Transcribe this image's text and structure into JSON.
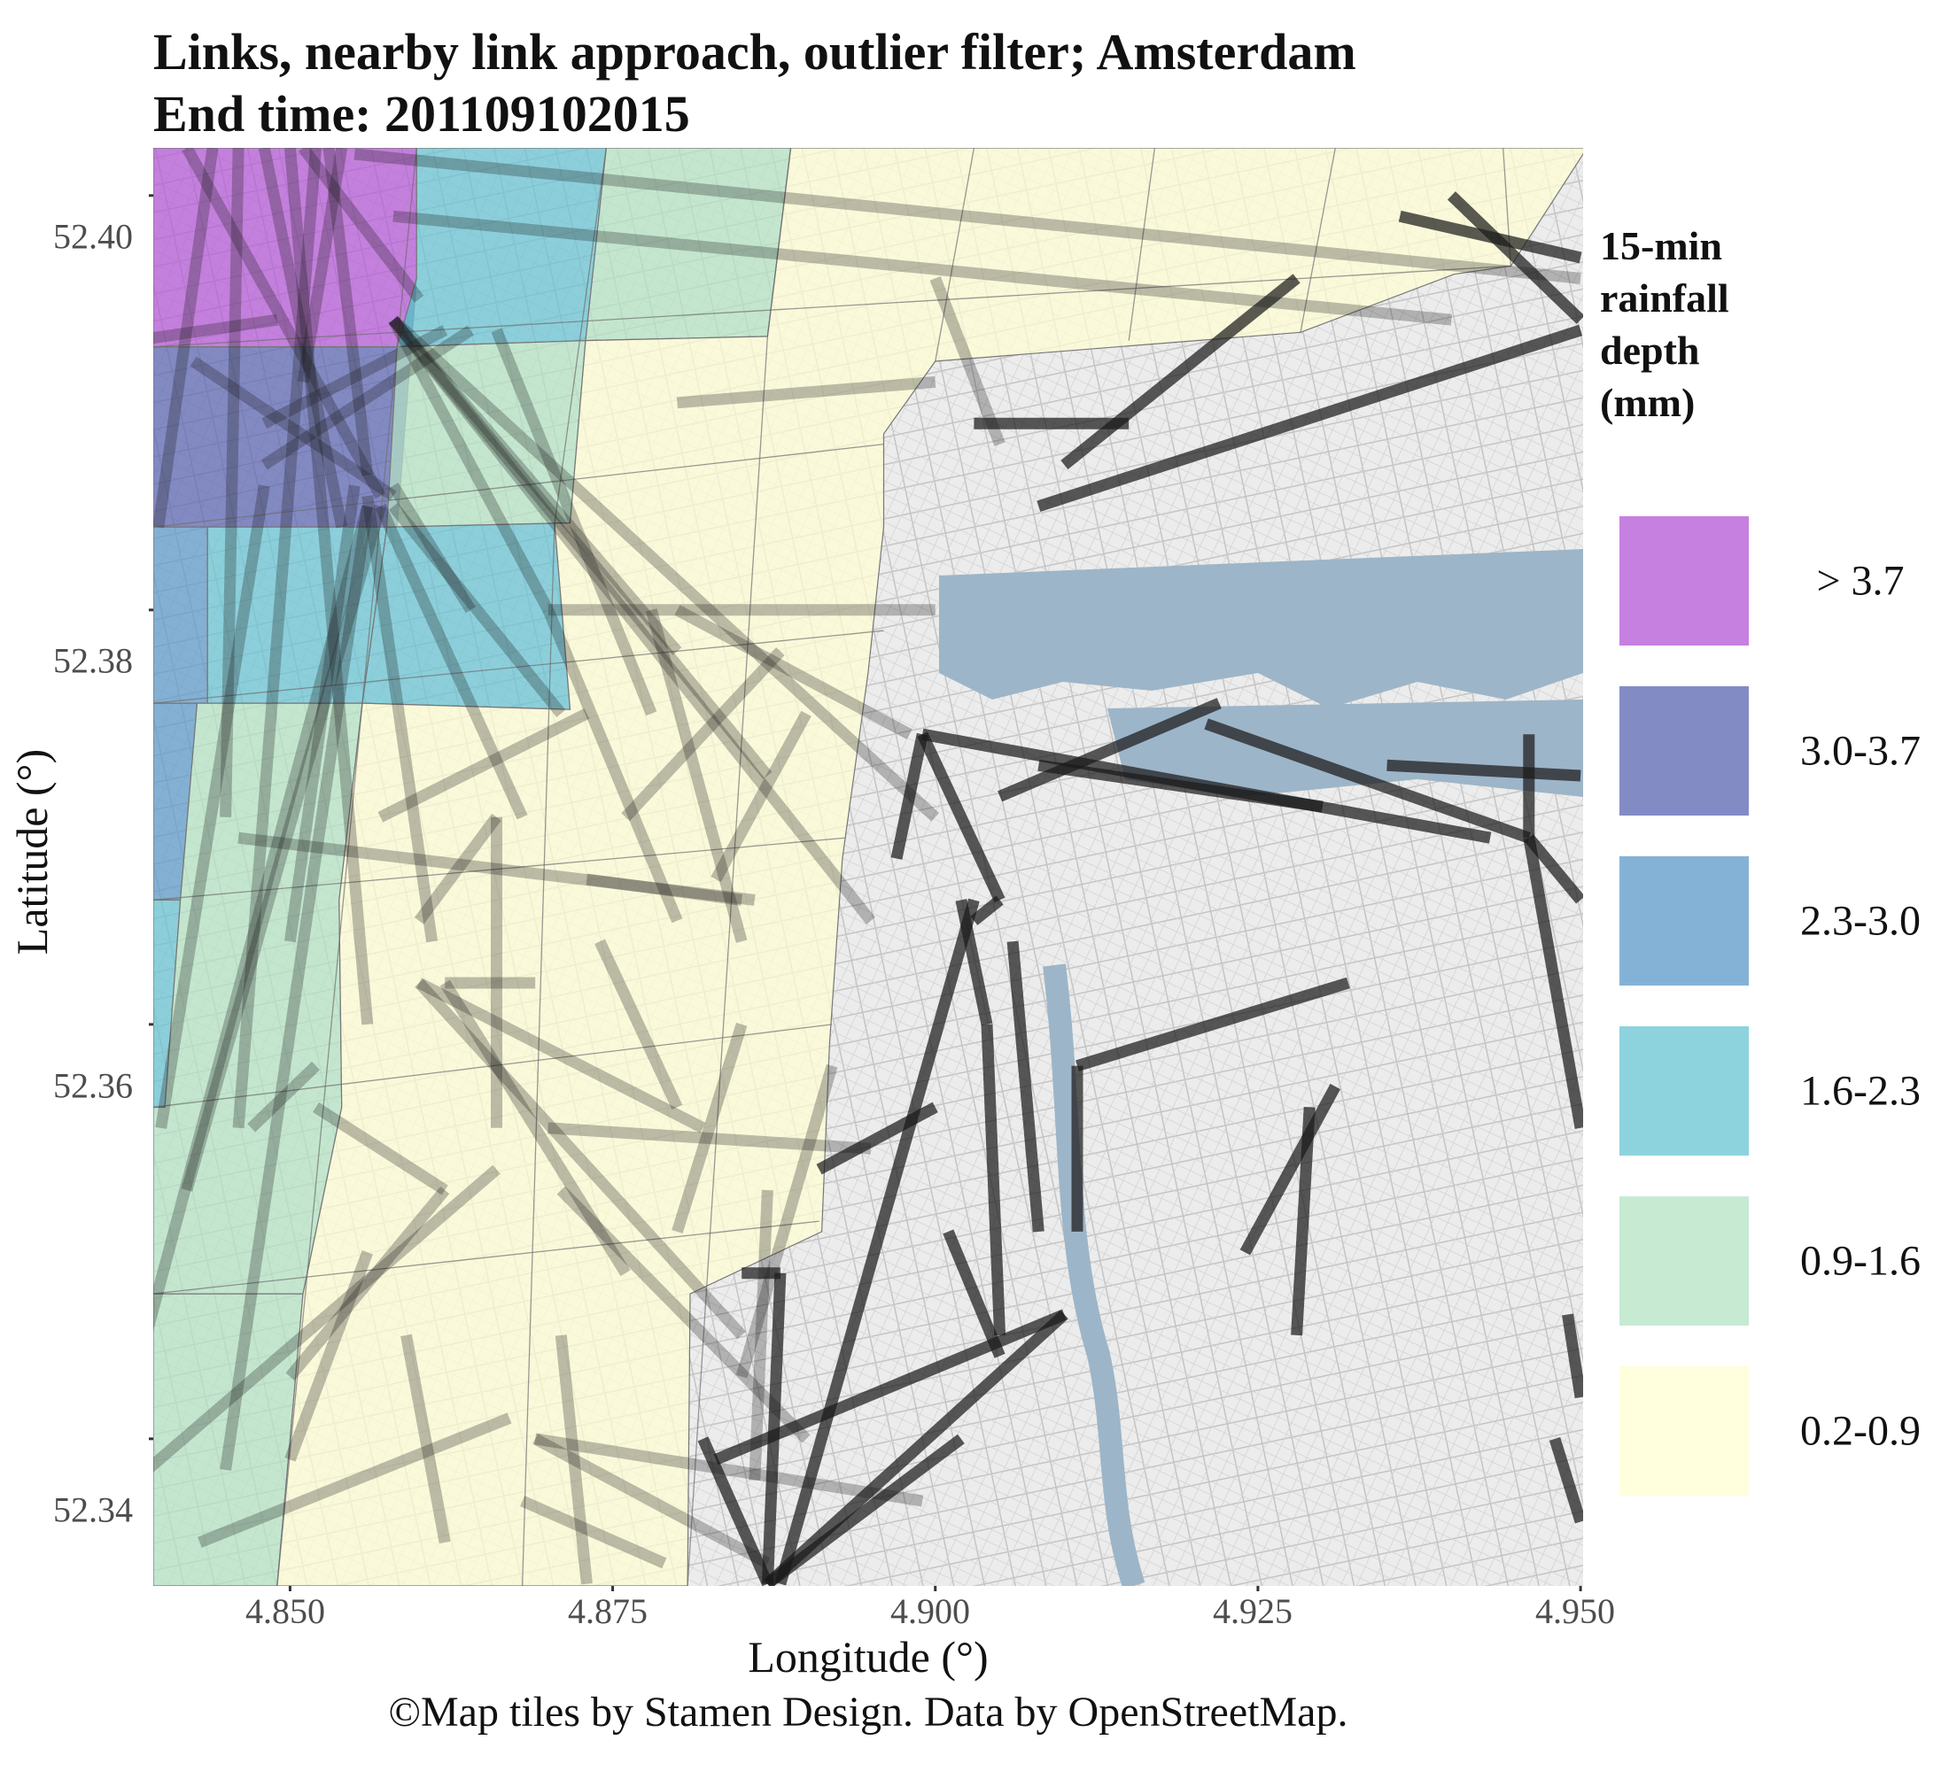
{
  "title": {
    "line1": "Links, nearby link approach, outlier filter; Amsterdam",
    "line2": "End time:  201109102015"
  },
  "axes": {
    "xlabel": "Longitude (°)",
    "ylabel": "Latitude (°)",
    "xticks": [
      "4.850",
      "4.875",
      "4.900",
      "4.925",
      "4.950"
    ],
    "yticks": [
      "52.40",
      "52.38",
      "52.36",
      "52.34"
    ],
    "xlim": [
      4.8394,
      4.9502
    ],
    "ylim": [
      52.3329,
      52.4023
    ]
  },
  "caption": "©Map tiles by Stamen Design. Data by OpenStreetMap.",
  "legend": {
    "title_lines": [
      "15-min",
      "rainfall",
      "depth",
      "(mm)"
    ],
    "items": [
      {
        "label": "> 3.7",
        "color": "#b356d6"
      },
      {
        "label": "3.0-3.7",
        "color": "#5a64b2"
      },
      {
        "label": "2.3-3.0",
        "color": "#5b98c9"
      },
      {
        "label": "1.6-2.3",
        "color": "#67c4d2"
      },
      {
        "label": "0.9-1.6",
        "color": "#b4e3c4"
      },
      {
        "label": "0.2-0.9",
        "color": "#fffdd2"
      }
    ]
  },
  "map": {
    "water_color": "#9db5c8",
    "land_color": "#ececec",
    "street_color": "#bcbcbc",
    "link_color": "#1a1a1a"
  },
  "rainfall_cells": [
    {
      "cls": 0,
      "corners": [
        [
          4.8394,
          52.4023
        ],
        [
          4.8598,
          52.4023
        ],
        [
          4.8598,
          52.396
        ],
        [
          4.8583,
          52.3927
        ],
        [
          4.8394,
          52.3927
        ]
      ]
    },
    {
      "cls": 1,
      "corners": [
        [
          4.8394,
          52.3927
        ],
        [
          4.8583,
          52.3927
        ],
        [
          4.8598,
          52.396
        ],
        [
          4.8583,
          52.384
        ],
        [
          4.8575,
          52.384
        ],
        [
          4.8394,
          52.384
        ]
      ]
    },
    {
      "cls": 2,
      "corners": [
        [
          4.8394,
          52.384
        ],
        [
          4.8436,
          52.384
        ],
        [
          4.8436,
          52.3755
        ],
        [
          4.8394,
          52.3755
        ]
      ]
    },
    {
      "cls": 2,
      "corners": [
        [
          4.8394,
          52.3755
        ],
        [
          4.8428,
          52.3755
        ],
        [
          4.8415,
          52.366
        ],
        [
          4.8394,
          52.366
        ]
      ]
    },
    {
      "cls": 3,
      "corners": [
        [
          4.8436,
          52.384
        ],
        [
          4.8575,
          52.384
        ],
        [
          4.8556,
          52.3755
        ],
        [
          4.8436,
          52.3755
        ]
      ]
    },
    {
      "cls": 3,
      "corners": [
        [
          4.8598,
          52.4023
        ],
        [
          4.8745,
          52.4023
        ],
        [
          4.8729,
          52.393
        ],
        [
          4.8583,
          52.3927
        ],
        [
          4.8598,
          52.396
        ]
      ]
    },
    {
      "cls": 3,
      "corners": [
        [
          4.8394,
          52.366
        ],
        [
          4.8415,
          52.366
        ],
        [
          4.8403,
          52.356
        ],
        [
          4.8394,
          52.356
        ]
      ]
    },
    {
      "cls": 3,
      "corners": [
        [
          4.8575,
          52.384
        ],
        [
          4.8705,
          52.3842
        ],
        [
          4.8717,
          52.3752
        ],
        [
          4.8556,
          52.3755
        ]
      ]
    },
    {
      "cls": 4,
      "corners": [
        [
          4.8745,
          52.4023
        ],
        [
          4.8888,
          52.4023
        ],
        [
          4.887,
          52.3932
        ],
        [
          4.8729,
          52.393
        ]
      ]
    },
    {
      "cls": 4,
      "corners": [
        [
          4.8583,
          52.3927
        ],
        [
          4.8729,
          52.393
        ],
        [
          4.8717,
          52.3842
        ],
        [
          4.8575,
          52.384
        ]
      ]
    },
    {
      "cls": 4,
      "corners": [
        [
          4.8428,
          52.3755
        ],
        [
          4.8556,
          52.3755
        ],
        [
          4.8538,
          52.366
        ],
        [
          4.854,
          52.356
        ],
        [
          4.851,
          52.347
        ],
        [
          4.8394,
          52.347
        ],
        [
          4.8394,
          52.356
        ],
        [
          4.8403,
          52.356
        ],
        [
          4.8415,
          52.366
        ]
      ]
    },
    {
      "cls": 4,
      "corners": [
        [
          4.8394,
          52.347
        ],
        [
          4.851,
          52.347
        ],
        [
          4.849,
          52.3329
        ],
        [
          4.8394,
          52.3329
        ]
      ]
    },
    {
      "cls": 5,
      "corners": [
        [
          4.8888,
          52.4023
        ],
        [
          4.9505,
          52.4023
        ],
        [
          4.9502,
          52.402
        ],
        [
          4.9446,
          52.3966
        ],
        [
          4.9402,
          52.3962
        ],
        [
          4.9283,
          52.3934
        ],
        [
          4.9,
          52.392
        ],
        [
          4.896,
          52.3885
        ],
        [
          4.896,
          52.384
        ],
        [
          4.8948,
          52.377
        ],
        [
          4.8928,
          52.368
        ],
        [
          4.8918,
          52.359
        ],
        [
          4.8912,
          52.35
        ],
        [
          4.881,
          52.347
        ],
        [
          4.8808,
          52.3329
        ],
        [
          4.849,
          52.3329
        ],
        [
          4.851,
          52.347
        ],
        [
          4.854,
          52.356
        ],
        [
          4.8538,
          52.366
        ],
        [
          4.8556,
          52.3755
        ],
        [
          4.8717,
          52.3752
        ],
        [
          4.8705,
          52.3842
        ],
        [
          4.8717,
          52.3842
        ],
        [
          4.8729,
          52.393
        ],
        [
          4.887,
          52.3932
        ]
      ]
    }
  ],
  "links": [
    [
      4.842,
      52.4023,
      4.857,
      52.3855,
      1
    ],
    [
      4.846,
      52.4023,
      4.845,
      52.37,
      1
    ],
    [
      4.85,
      52.4023,
      4.856,
      52.36,
      1
    ],
    [
      4.848,
      52.4023,
      4.854,
      52.384,
      1
    ],
    [
      4.853,
      52.4023,
      4.856,
      52.3865,
      1
    ],
    [
      4.851,
      52.4023,
      4.86,
      52.395,
      1
    ],
    [
      4.854,
      52.4023,
      4.851,
      52.391,
      1
    ],
    [
      4.844,
      52.4023,
      4.8398,
      52.384,
      1
    ],
    [
      4.852,
      52.4023,
      4.846,
      52.355,
      1
    ],
    [
      4.849,
      52.394,
      4.838,
      52.393,
      1
    ],
    [
      4.848,
      52.389,
      4.862,
      52.3935,
      1
    ],
    [
      4.858,
      52.3855,
      4.8425,
      52.392,
      1
    ],
    [
      4.84,
      52.355,
      4.848,
      52.386,
      1
    ],
    [
      4.838,
      52.343,
      4.856,
      52.385,
      1
    ],
    [
      4.857,
      52.385,
      4.842,
      52.352,
      1
    ],
    [
      4.856,
      52.385,
      4.845,
      52.3385,
      1
    ],
    [
      4.855,
      52.386,
      4.85,
      52.364,
      1
    ],
    [
      4.858,
      52.385,
      4.871,
      52.375,
      1
    ],
    [
      4.857,
      52.385,
      4.868,
      52.37,
      1
    ],
    [
      4.858,
      52.386,
      4.864,
      52.38,
      1
    ],
    [
      4.856,
      52.3855,
      4.861,
      52.364,
      1
    ],
    [
      4.858,
      52.394,
      4.9,
      52.37,
      1
    ],
    [
      4.858,
      52.394,
      4.895,
      52.365,
      1
    ],
    [
      4.858,
      52.394,
      4.887,
      52.372,
      1
    ],
    [
      4.858,
      52.394,
      4.88,
      52.378,
      1
    ],
    [
      4.858,
      52.394,
      4.87,
      52.38,
      1
    ],
    [
      4.866,
      52.3935,
      4.878,
      52.375,
      1
    ],
    [
      4.864,
      52.3935,
      4.848,
      52.387,
      1
    ],
    [
      4.855,
      52.402,
      4.95,
      52.396,
      1
    ],
    [
      4.858,
      52.399,
      4.94,
      52.394,
      1
    ],
    [
      4.87,
      52.38,
      4.9,
      52.38,
      1
    ],
    [
      4.88,
      52.38,
      4.898,
      52.374,
      1
    ],
    [
      4.88,
      52.39,
      4.9,
      52.391,
      1
    ],
    [
      4.87,
      52.38,
      4.88,
      52.365,
      1
    ],
    [
      4.878,
      52.38,
      4.885,
      52.364,
      1
    ],
    [
      4.89,
      52.375,
      4.883,
      52.367,
      1
    ],
    [
      4.876,
      52.37,
      4.888,
      52.378,
      1
    ],
    [
      4.857,
      52.37,
      4.873,
      52.375,
      1
    ],
    [
      4.846,
      52.369,
      4.886,
      52.366,
      1
    ],
    [
      4.86,
      52.365,
      4.866,
      52.37,
      1
    ],
    [
      4.866,
      52.37,
      4.866,
      52.355,
      1
    ],
    [
      4.862,
      52.362,
      4.869,
      52.362,
      1
    ],
    [
      4.86,
      52.362,
      4.882,
      52.355,
      1
    ],
    [
      4.86,
      52.362,
      4.885,
      52.345,
      1
    ],
    [
      4.862,
      52.362,
      4.876,
      52.348,
      1
    ],
    [
      4.874,
      52.364,
      4.88,
      52.356,
      1
    ],
    [
      4.885,
      52.36,
      4.88,
      52.35,
      1
    ],
    [
      4.87,
      52.355,
      4.895,
      52.354,
      1
    ],
    [
      4.892,
      52.358,
      4.885,
      52.343,
      1
    ],
    [
      4.887,
      52.352,
      4.886,
      52.338,
      1
    ],
    [
      4.838,
      52.338,
      4.866,
      52.353,
      1
    ],
    [
      4.843,
      52.335,
      4.867,
      52.341,
      1
    ],
    [
      4.85,
      52.343,
      4.862,
      52.352,
      1
    ],
    [
      4.862,
      52.335,
      4.859,
      52.345,
      1
    ],
    [
      4.856,
      52.349,
      4.85,
      52.339,
      1
    ],
    [
      4.852,
      52.356,
      4.862,
      52.352,
      1
    ],
    [
      4.847,
      52.355,
      4.852,
      52.358,
      1
    ],
    [
      4.871,
      52.345,
      4.873,
      52.333,
      1
    ],
    [
      4.868,
      52.337,
      4.879,
      52.334,
      1
    ],
    [
      4.869,
      52.34,
      4.887,
      52.334,
      1
    ],
    [
      4.869,
      52.34,
      4.899,
      52.337,
      1
    ],
    [
      4.871,
      52.352,
      4.89,
      52.34,
      1
    ],
    [
      4.873,
      52.367,
      4.885,
      52.366,
      1
    ],
    [
      4.9,
      52.396,
      4.905,
      52.388,
      1
    ],
    [
      4.908,
      52.385,
      4.95,
      52.3935,
      0
    ],
    [
      4.903,
      52.389,
      4.915,
      52.389,
      0
    ],
    [
      4.928,
      52.396,
      4.91,
      52.387,
      0
    ],
    [
      4.94,
      52.4,
      4.95,
      52.394,
      0
    ],
    [
      4.936,
      52.399,
      4.95,
      52.397,
      0
    ],
    [
      4.899,
      52.374,
      4.897,
      52.368,
      0
    ],
    [
      4.899,
      52.374,
      4.943,
      52.369,
      0
    ],
    [
      4.899,
      52.374,
      4.905,
      52.366,
      0
    ],
    [
      4.908,
      52.3725,
      4.93,
      52.3705,
      0
    ],
    [
      4.905,
      52.371,
      4.922,
      52.3755,
      0
    ],
    [
      4.935,
      52.3725,
      4.95,
      52.372,
      0
    ],
    [
      4.921,
      52.3745,
      4.946,
      52.369,
      0
    ],
    [
      4.946,
      52.369,
      4.95,
      52.366,
      0
    ],
    [
      4.946,
      52.369,
      4.946,
      52.374,
      0
    ],
    [
      4.946,
      52.369,
      4.95,
      52.355,
      0
    ],
    [
      4.905,
      52.366,
      4.903,
      52.365,
      0
    ],
    [
      4.902,
      52.366,
      4.904,
      52.36,
      0
    ],
    [
      4.904,
      52.36,
      4.905,
      52.345,
      0
    ],
    [
      4.906,
      52.364,
      4.908,
      52.35,
      0
    ],
    [
      4.911,
      52.358,
      4.911,
      52.35,
      0
    ],
    [
      4.911,
      52.358,
      4.932,
      52.362,
      0
    ],
    [
      4.931,
      52.357,
      4.924,
      52.349,
      0
    ],
    [
      4.929,
      52.356,
      4.928,
      52.345,
      0
    ],
    [
      4.903,
      52.366,
      4.888,
      52.333,
      0
    ],
    [
      4.9,
      52.356,
      4.891,
      52.353,
      0
    ],
    [
      4.887,
      52.333,
      4.91,
      52.346,
      0
    ],
    [
      4.887,
      52.333,
      4.902,
      52.34,
      0
    ],
    [
      4.887,
      52.333,
      4.882,
      52.34,
      0
    ],
    [
      4.887,
      52.333,
      4.888,
      52.348,
      0
    ],
    [
      4.883,
      52.339,
      4.91,
      52.346,
      0
    ],
    [
      4.901,
      52.35,
      4.905,
      52.344,
      0
    ],
    [
      4.888,
      52.348,
      4.885,
      52.348,
      0
    ],
    [
      4.948,
      52.34,
      4.95,
      52.336,
      0
    ],
    [
      4.949,
      52.346,
      4.95,
      52.342,
      0
    ]
  ]
}
